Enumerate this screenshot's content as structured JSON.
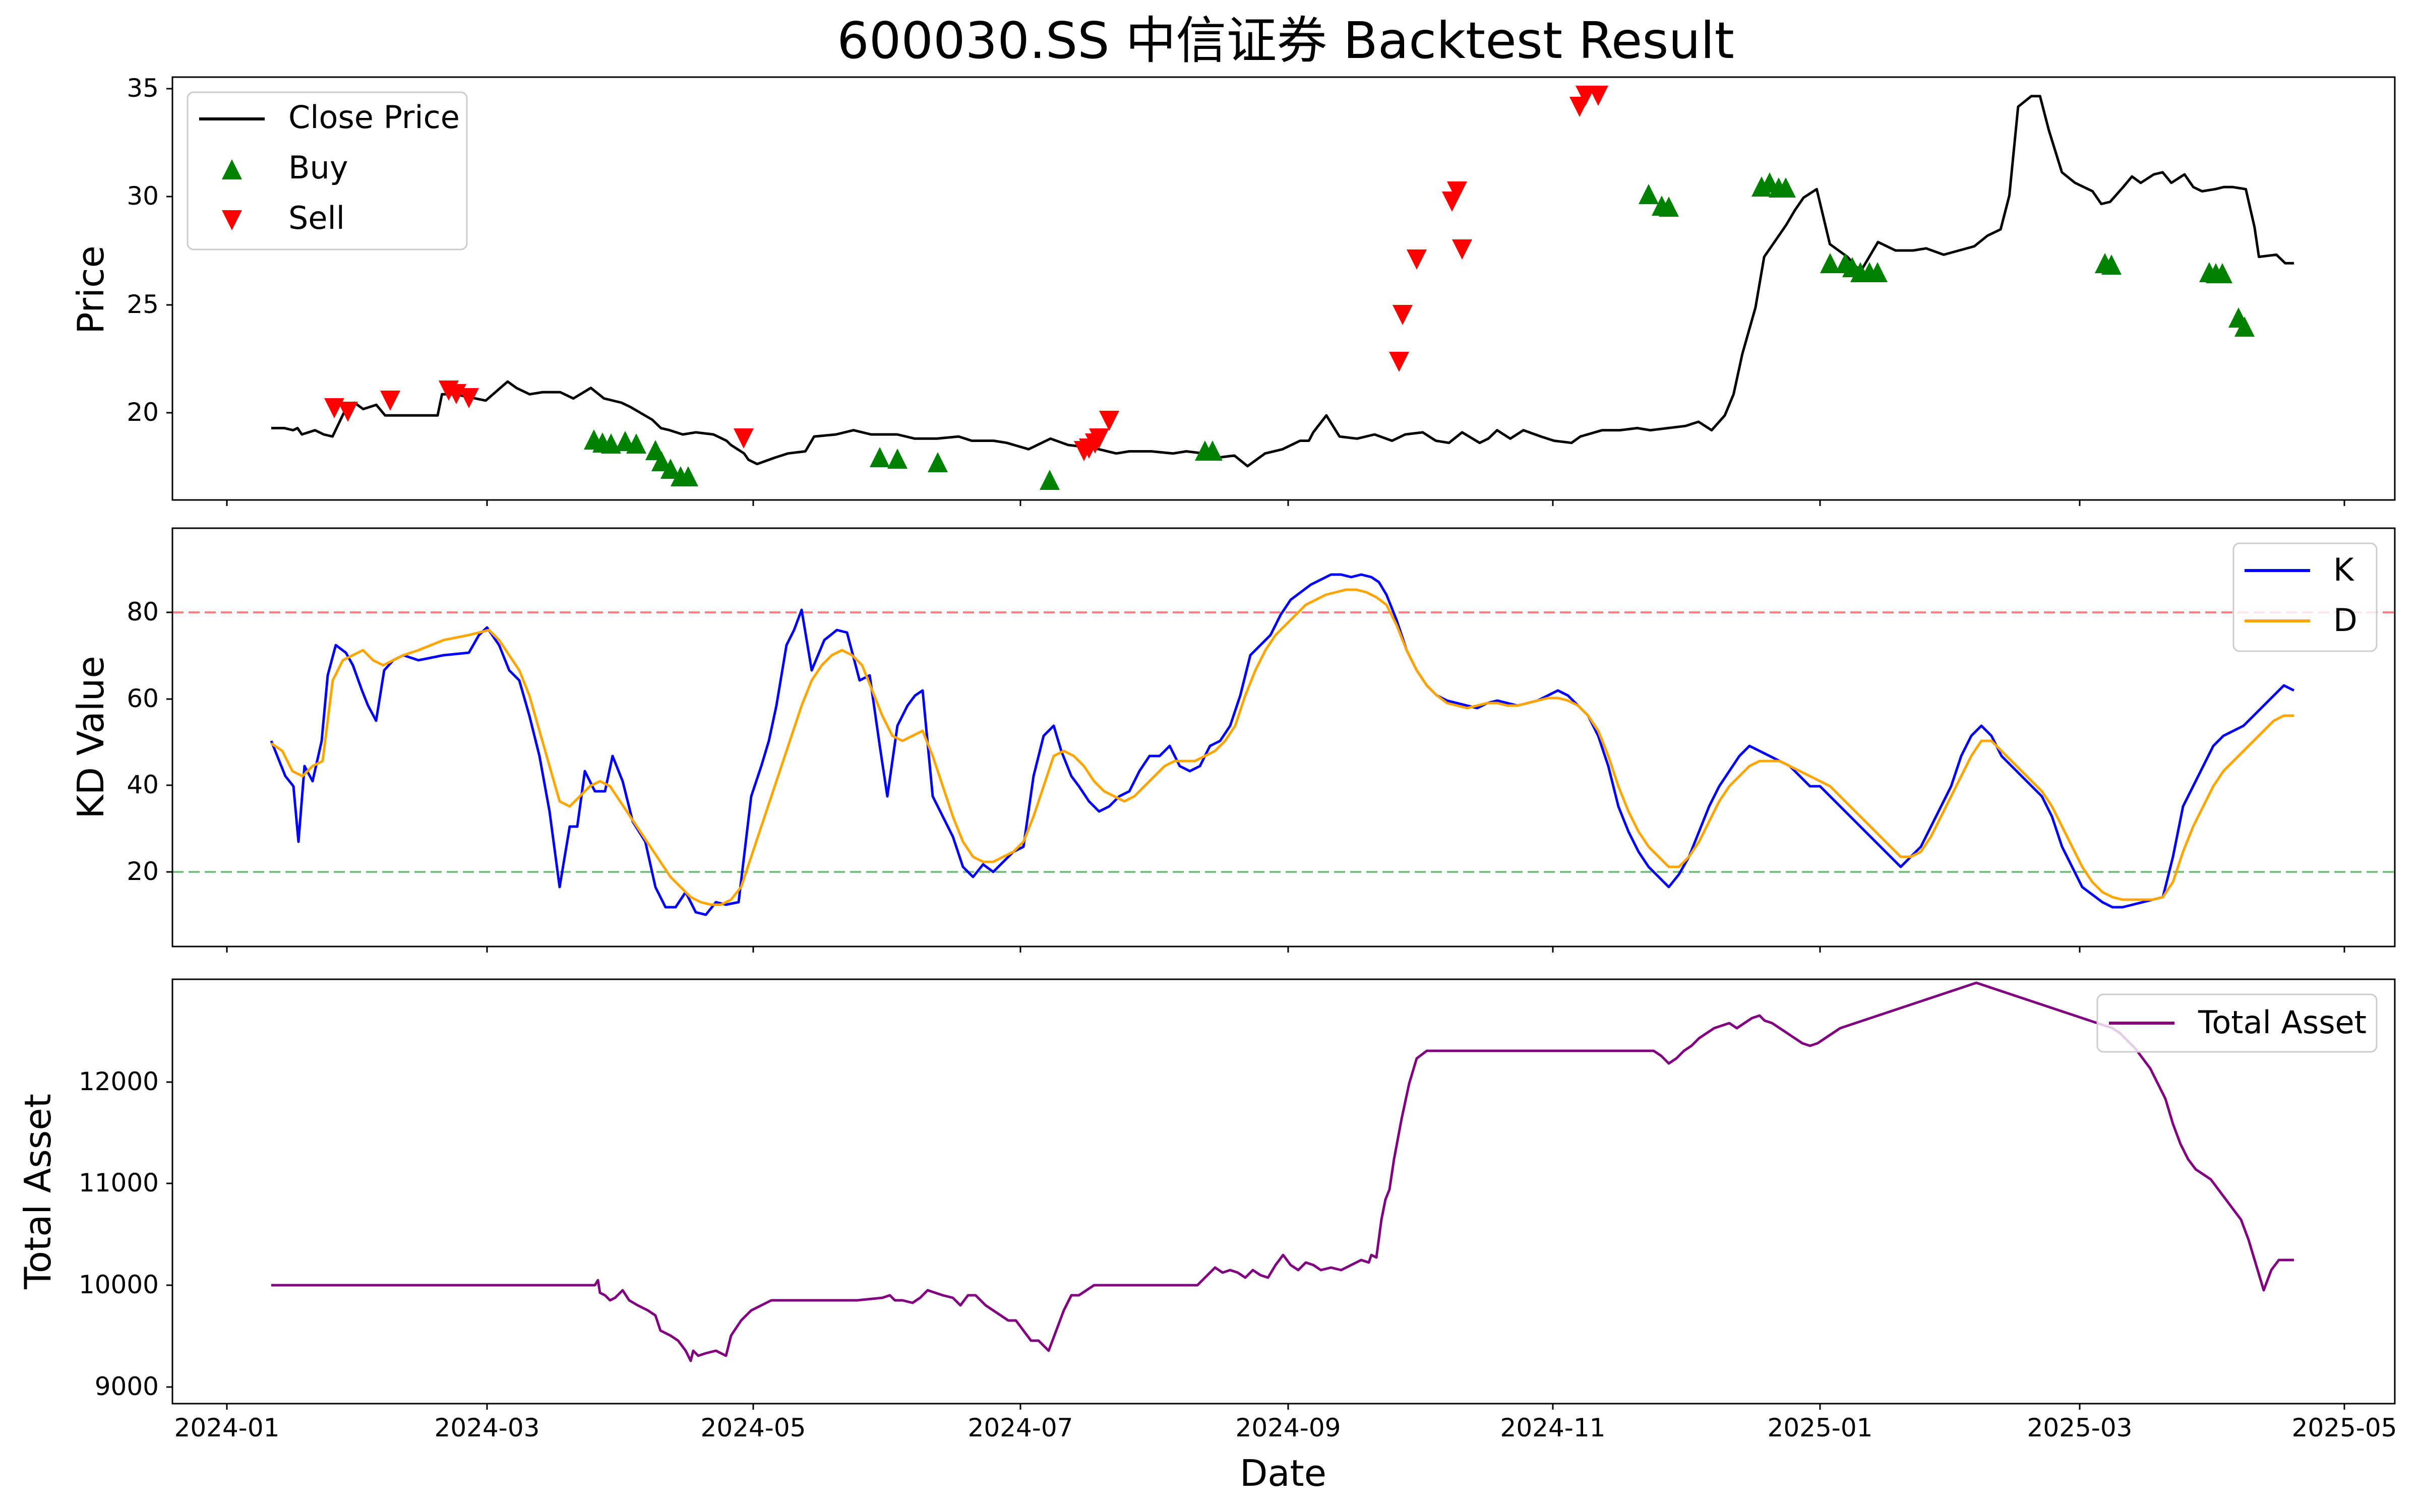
{
  "figure": {
    "title": "600030.SS 中信证券 Backtest Result",
    "xlabel": "Date",
    "x_ticks": [
      "2024-01",
      "2024-03",
      "2024-05",
      "2024-07",
      "2024-09",
      "2024-11",
      "2025-01",
      "2025-03",
      "2025-05"
    ]
  },
  "chart_data": [
    {
      "type": "line",
      "ylabel": "Price",
      "ylim": [
        15.5,
        35.5
      ],
      "y_ticks": [
        "20",
        "25",
        "30",
        "35"
      ],
      "legend_position": "top-left",
      "x_date_range": [
        "2024-01-12",
        "2025-04-18"
      ],
      "series": [
        {
          "name": "Close Price",
          "color": "#000000",
          "points": [
            [
              "2024-01-12",
              18.9
            ],
            [
              "2024-01-15",
              18.9
            ],
            [
              "2024-01-17",
              18.8
            ],
            [
              "2024-01-18",
              18.9
            ],
            [
              "2024-01-19",
              18.6
            ],
            [
              "2024-01-22",
              18.8
            ],
            [
              "2024-01-24",
              18.6
            ],
            [
              "2024-01-26",
              18.5
            ],
            [
              "2024-01-29",
              19.8
            ],
            [
              "2024-01-31",
              20.1
            ],
            [
              "2024-02-02",
              19.8
            ],
            [
              "2024-02-05",
              20.0
            ],
            [
              "2024-02-07",
              19.5
            ],
            [
              "2024-02-19",
              19.5
            ],
            [
              "2024-02-20",
              20.5
            ],
            [
              "2024-02-23",
              20.5
            ],
            [
              "2024-03-01",
              20.2
            ],
            [
              "2024-03-06",
              21.1
            ],
            [
              "2024-03-08",
              20.8
            ],
            [
              "2024-03-11",
              20.5
            ],
            [
              "2024-03-14",
              20.6
            ],
            [
              "2024-03-18",
              20.6
            ],
            [
              "2024-03-21",
              20.3
            ],
            [
              "2024-03-25",
              20.8
            ],
            [
              "2024-03-28",
              20.3
            ],
            [
              "2024-04-01",
              20.1
            ],
            [
              "2024-04-03",
              19.9
            ],
            [
              "2024-04-08",
              19.3
            ],
            [
              "2024-04-10",
              18.9
            ],
            [
              "2024-04-12",
              18.8
            ],
            [
              "2024-04-15",
              18.6
            ],
            [
              "2024-04-18",
              18.7
            ],
            [
              "2024-04-22",
              18.6
            ],
            [
              "2024-04-25",
              18.3
            ],
            [
              "2024-04-26",
              18.1
            ],
            [
              "2024-04-29",
              17.7
            ],
            [
              "2024-04-30",
              17.4
            ],
            [
              "2024-05-02",
              17.2
            ],
            [
              "2024-05-06",
              17.5
            ],
            [
              "2024-05-09",
              17.7
            ],
            [
              "2024-05-13",
              17.8
            ],
            [
              "2024-05-15",
              18.5
            ],
            [
              "2024-05-20",
              18.6
            ],
            [
              "2024-05-24",
              18.8
            ],
            [
              "2024-05-28",
              18.6
            ],
            [
              "2024-06-03",
              18.6
            ],
            [
              "2024-06-07",
              18.4
            ],
            [
              "2024-06-12",
              18.4
            ],
            [
              "2024-06-17",
              18.5
            ],
            [
              "2024-06-20",
              18.3
            ],
            [
              "2024-06-25",
              18.3
            ],
            [
              "2024-06-28",
              18.2
            ],
            [
              "2024-07-03",
              17.9
            ],
            [
              "2024-07-08",
              18.4
            ],
            [
              "2024-07-12",
              18.1
            ],
            [
              "2024-07-16",
              18.0
            ],
            [
              "2024-07-19",
              17.9
            ],
            [
              "2024-07-23",
              17.7
            ],
            [
              "2024-07-26",
              17.8
            ],
            [
              "2024-07-31",
              17.8
            ],
            [
              "2024-08-05",
              17.7
            ],
            [
              "2024-08-08",
              17.8
            ],
            [
              "2024-08-12",
              17.7
            ],
            [
              "2024-08-15",
              17.5
            ],
            [
              "2024-08-19",
              17.6
            ],
            [
              "2024-08-22",
              17.1
            ],
            [
              "2024-08-26",
              17.7
            ],
            [
              "2024-08-30",
              17.9
            ],
            [
              "2024-09-03",
              18.3
            ],
            [
              "2024-09-05",
              18.3
            ],
            [
              "2024-09-06",
              18.7
            ],
            [
              "2024-09-09",
              19.5
            ],
            [
              "2024-09-12",
              18.5
            ],
            [
              "2024-09-16",
              18.4
            ],
            [
              "2024-09-20",
              18.6
            ],
            [
              "2024-09-24",
              18.3
            ],
            [
              "2024-09-27",
              18.6
            ],
            [
              "2024-10-01",
              18.7
            ],
            [
              "2024-10-04",
              18.3
            ],
            [
              "2024-10-07",
              18.2
            ],
            [
              "2024-10-10",
              18.7
            ],
            [
              "2024-10-14",
              18.2
            ],
            [
              "2024-10-16",
              18.4
            ],
            [
              "2024-10-18",
              18.8
            ],
            [
              "2024-10-21",
              18.4
            ],
            [
              "2024-10-24",
              18.8
            ],
            [
              "2024-10-28",
              18.5
            ],
            [
              "2024-10-31",
              18.3
            ],
            [
              "2024-11-04",
              18.2
            ],
            [
              "2024-11-06",
              18.5
            ],
            [
              "2024-11-11",
              18.8
            ],
            [
              "2024-11-15",
              18.8
            ],
            [
              "2024-11-19",
              18.9
            ],
            [
              "2024-11-22",
              18.8
            ],
            [
              "2024-11-26",
              18.9
            ],
            [
              "2024-11-30",
              19.0
            ],
            [
              "2024-12-03",
              19.2
            ],
            [
              "2024-12-06",
              18.8
            ],
            [
              "2024-12-09",
              19.5
            ],
            [
              "2024-12-11",
              20.5
            ],
            [
              "2024-12-13",
              22.4
            ],
            [
              "2024-12-16",
              24.6
            ],
            [
              "2024-12-18",
              27.0
            ],
            [
              "2024-12-20",
              27.6
            ],
            [
              "2024-12-23",
              28.5
            ],
            [
              "2024-12-25",
              29.2
            ],
            [
              "2024-12-27",
              29.8
            ],
            [
              "2024-12-30",
              30.2
            ],
            [
              "2025-01-02",
              27.6
            ],
            [
              "2025-01-06",
              27.0
            ],
            [
              "2025-01-09",
              26.3
            ],
            [
              "2025-01-13",
              27.7
            ],
            [
              "2025-01-17",
              27.3
            ],
            [
              "2025-01-21",
              27.3
            ],
            [
              "2025-01-24",
              27.4
            ],
            [
              "2025-01-28",
              27.1
            ],
            [
              "2025-02-04",
              27.5
            ],
            [
              "2025-02-07",
              28.0
            ],
            [
              "2025-02-10",
              28.3
            ],
            [
              "2025-02-12",
              29.9
            ],
            [
              "2025-02-14",
              34.1
            ],
            [
              "2025-02-17",
              34.6
            ],
            [
              "2025-02-19",
              34.6
            ],
            [
              "2025-02-21",
              33.0
            ],
            [
              "2025-02-24",
              31.0
            ],
            [
              "2025-02-27",
              30.5
            ],
            [
              "2025-03-03",
              30.1
            ],
            [
              "2025-03-05",
              29.5
            ],
            [
              "2025-03-07",
              29.6
            ],
            [
              "2025-03-10",
              30.3
            ],
            [
              "2025-03-12",
              30.8
            ],
            [
              "2025-03-14",
              30.5
            ],
            [
              "2025-03-17",
              30.9
            ],
            [
              "2025-03-19",
              31.0
            ],
            [
              "2025-03-21",
              30.5
            ],
            [
              "2025-03-24",
              30.9
            ],
            [
              "2025-03-26",
              30.3
            ],
            [
              "2025-03-28",
              30.1
            ],
            [
              "2025-03-31",
              30.2
            ],
            [
              "2025-04-02",
              30.3
            ],
            [
              "2025-04-04",
              30.3
            ],
            [
              "2025-04-07",
              30.2
            ],
            [
              "2025-04-09",
              28.4
            ],
            [
              "2025-04-10",
              27.0
            ],
            [
              "2025-04-14",
              27.1
            ],
            [
              "2025-04-16",
              26.7
            ],
            [
              "2025-04-18",
              26.7
            ]
          ]
        }
      ]
    },
    {
      "type": "line",
      "ylabel": "KD Value",
      "ylim": [
        0,
        100
      ],
      "y_ticks": [
        "20",
        "40",
        "60",
        "80"
      ],
      "reference_lines": [
        {
          "value": 80,
          "color": "#ff7f7f",
          "style": "dashed"
        },
        {
          "value": 20,
          "color": "#7fbf7f",
          "style": "dashed"
        }
      ],
      "legend_position": "top-right",
      "series": [
        {
          "name": "K",
          "color": "#0000ff"
        },
        {
          "name": "D",
          "color": "#ffa500"
        }
      ]
    },
    {
      "type": "line",
      "ylabel": "Total Asset",
      "ylim": [
        8900,
        12900
      ],
      "y_ticks": [
        "9000",
        "10000",
        "11000",
        "12000"
      ],
      "legend_position": "top-right",
      "series": [
        {
          "name": "Total Asset",
          "color": "#800080"
        }
      ]
    }
  ]
}
